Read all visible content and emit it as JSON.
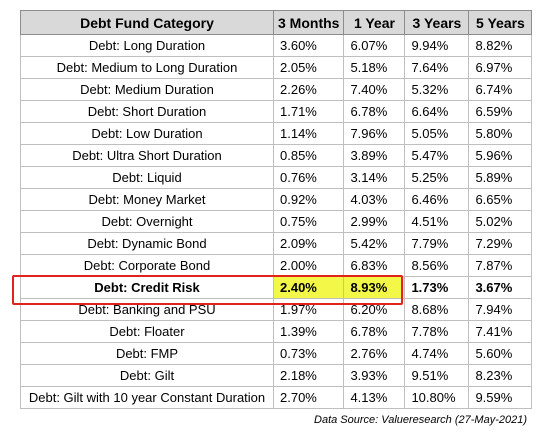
{
  "table": {
    "headers": [
      "Debt Fund Category",
      "3 Months",
      "1 Year",
      "3 Years",
      "5 Years"
    ],
    "rows": [
      [
        "Debt: Long Duration",
        "3.60%",
        "6.07%",
        "9.94%",
        "8.82%"
      ],
      [
        "Debt: Medium to Long Duration",
        "2.05%",
        "5.18%",
        "7.64%",
        "6.97%"
      ],
      [
        "Debt: Medium Duration",
        "2.26%",
        "7.40%",
        "5.32%",
        "6.74%"
      ],
      [
        "Debt: Short Duration",
        "1.71%",
        "6.78%",
        "6.64%",
        "6.59%"
      ],
      [
        "Debt: Low Duration",
        "1.14%",
        "7.96%",
        "5.05%",
        "5.80%"
      ],
      [
        "Debt: Ultra Short Duration",
        "0.85%",
        "3.89%",
        "5.47%",
        "5.96%"
      ],
      [
        "Debt: Liquid",
        "0.76%",
        "3.14%",
        "5.25%",
        "5.89%"
      ],
      [
        "Debt: Money Market",
        "0.92%",
        "4.03%",
        "6.46%",
        "6.65%"
      ],
      [
        "Debt: Overnight",
        "0.75%",
        "2.99%",
        "4.51%",
        "5.02%"
      ],
      [
        "Debt: Dynamic Bond",
        "2.09%",
        "5.42%",
        "7.79%",
        "7.29%"
      ],
      [
        "Debt: Corporate Bond",
        "2.00%",
        "6.83%",
        "8.56%",
        "7.87%"
      ],
      [
        "Debt: Credit Risk",
        "2.40%",
        "8.93%",
        "1.73%",
        "3.67%"
      ],
      [
        "Debt: Banking and PSU",
        "1.97%",
        "6.20%",
        "8.68%",
        "7.94%"
      ],
      [
        "Debt: Floater",
        "1.39%",
        "6.78%",
        "7.78%",
        "7.41%"
      ],
      [
        "Debt: FMP",
        "0.73%",
        "2.76%",
        "4.74%",
        "5.60%"
      ],
      [
        "Debt: Gilt",
        "2.18%",
        "3.93%",
        "9.51%",
        "8.23%"
      ],
      [
        "Debt: Gilt with 10 year Constant Duration",
        "2.70%",
        "4.13%",
        "10.80%",
        "9.59%"
      ]
    ],
    "highlight_row": "Debt: Credit Risk"
  },
  "colors": {
    "header_bg": "#d9d9d9",
    "highlight_yellow": "#f3f747",
    "highlight_border": "#e2231a"
  },
  "source_note": "Data Source: Valueresearch (27-May-2021)"
}
